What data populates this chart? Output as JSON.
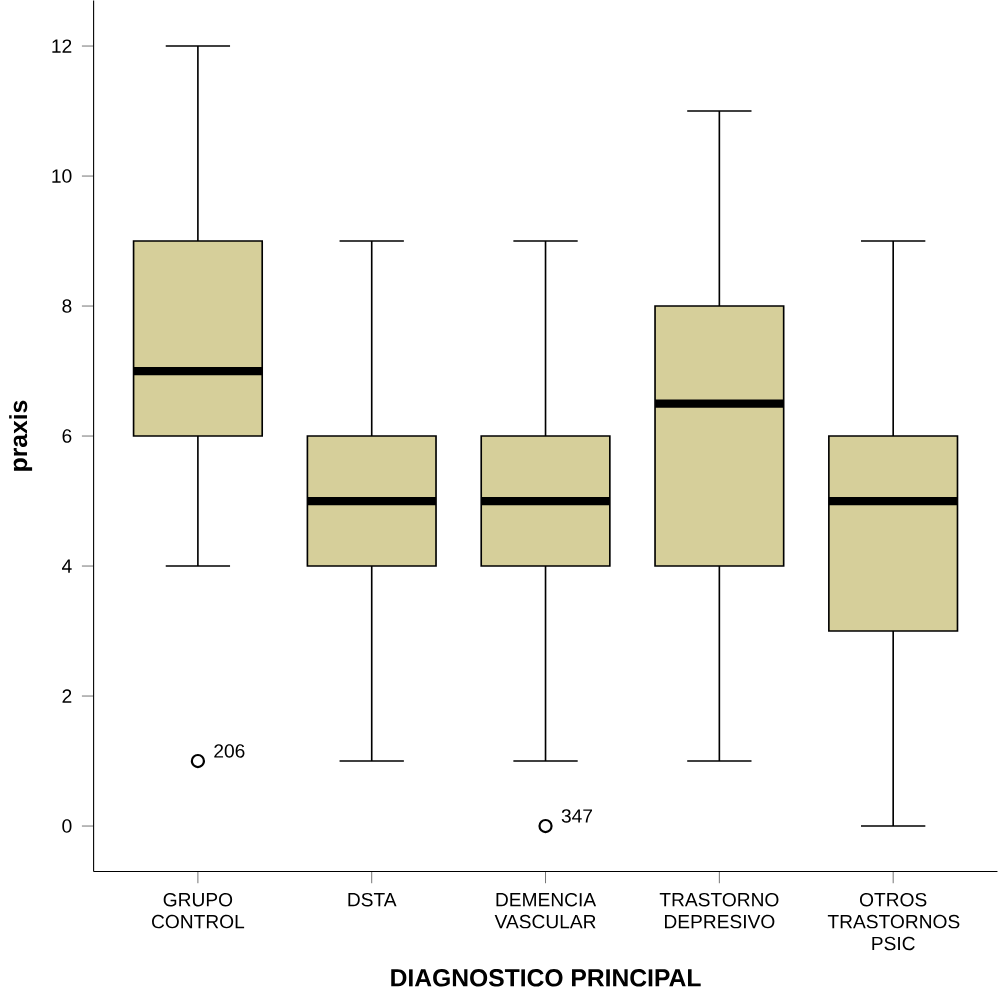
{
  "chart_data": {
    "type": "box",
    "xlabel": "DIAGNOSTICO PRINCIPAL",
    "ylabel": "praxis",
    "categories": [
      "GRUPO CONTROL",
      "DSTA",
      "DEMENCIA VASCULAR",
      "TRASTORNO DEPRESIVO",
      "OTROS TRASTORNOS PSIC"
    ],
    "color": "#d6cf9a",
    "boxes": [
      {
        "low": 4,
        "q1": 6,
        "median": 7,
        "q3": 9,
        "high": 12,
        "outliers": [
          1
        ]
      },
      {
        "low": 1,
        "q1": 4,
        "median": 5,
        "q3": 6,
        "high": 9
      },
      {
        "low": 1,
        "q1": 4,
        "median": 5,
        "q3": 6,
        "high": 9,
        "outliers": [
          0
        ]
      },
      {
        "low": 1,
        "q1": 4,
        "median": 6.5,
        "q3": 8,
        "high": 11
      },
      {
        "low": 0,
        "q1": 3,
        "median": 5,
        "q3": 6,
        "high": 9
      }
    ],
    "ylim": [
      -0.7,
      12.7
    ],
    "yticks": [
      0,
      2,
      4,
      6,
      8,
      10,
      12
    ],
    "annotations": [
      "206",
      "347"
    ]
  }
}
